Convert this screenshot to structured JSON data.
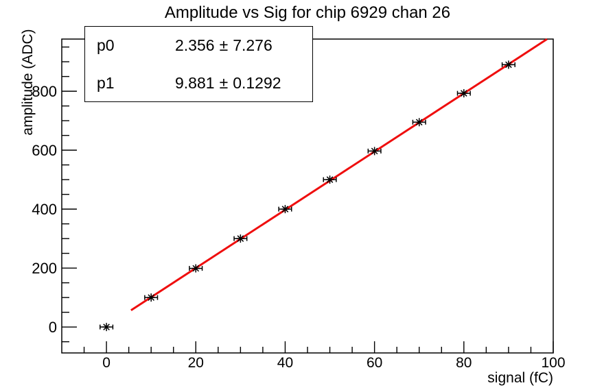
{
  "title": "Amplitude vs Sig for chip 6929 chan 26",
  "stats_box": {
    "rows": [
      {
        "name": "p0",
        "value": "2.356",
        "pm": "±",
        "error": "7.276"
      },
      {
        "name": "p1",
        "value": "9.881",
        "pm": "±",
        "error": "0.1292"
      }
    ]
  },
  "chart_data": {
    "type": "scatter",
    "title": "Amplitude vs Sig for chip 6929 chan 26",
    "xlabel": "signal (fC)",
    "ylabel": "amplitude (ADC)",
    "grid": false,
    "legend": null,
    "x_axis": {
      "min": -10,
      "max": 100,
      "major_ticks": [
        0,
        20,
        40,
        60,
        80,
        100
      ],
      "minor_step": 5
    },
    "y_axis": {
      "min": -88,
      "max": 977,
      "major_ticks": [
        0,
        200,
        400,
        600,
        800
      ],
      "minor_step": 50
    },
    "points": {
      "x": [
        0,
        10,
        20,
        30,
        40,
        50,
        60,
        70,
        80,
        90
      ],
      "y": [
        0,
        100,
        199,
        300,
        400,
        500,
        597,
        695,
        793,
        890
      ],
      "x_error": 1.2,
      "marker": "asterisk",
      "color": "#000000"
    },
    "fit": {
      "function": "pol1",
      "p0": 2.356,
      "p0_error": 7.276,
      "p1": 9.881,
      "p1_error": 0.1292,
      "draw_min": 5.5,
      "draw_max": 98.6,
      "color": "#ef0e0e"
    },
    "colors": {
      "axis": "#000000",
      "background": "#ffffff",
      "text": "#000000"
    }
  }
}
